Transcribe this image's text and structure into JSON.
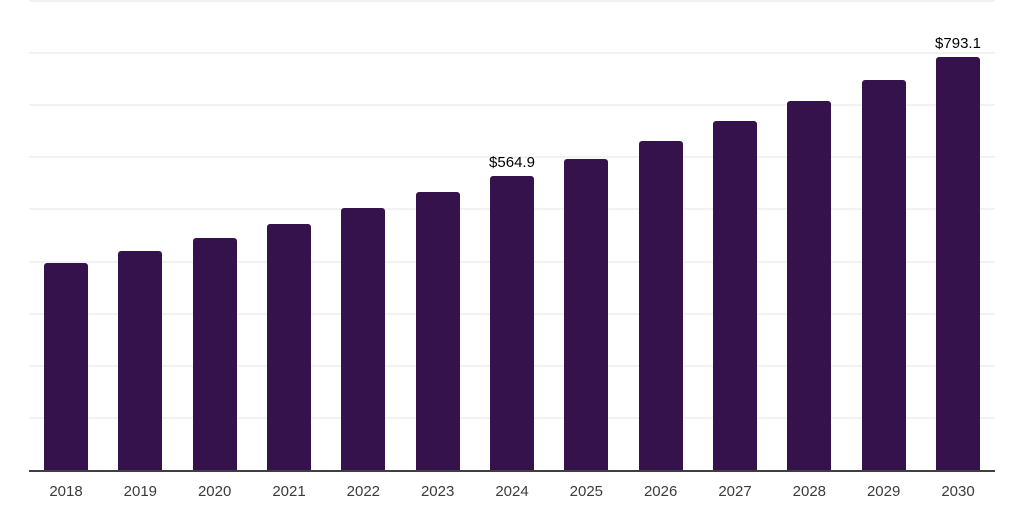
{
  "chart_data": {
    "type": "bar",
    "title": "",
    "xlabel": "",
    "ylabel": "",
    "categories": [
      "2018",
      "2019",
      "2020",
      "2021",
      "2022",
      "2023",
      "2024",
      "2025",
      "2026",
      "2027",
      "2028",
      "2029",
      "2030"
    ],
    "values": [
      398,
      421,
      446,
      473,
      503,
      534,
      564.9,
      597,
      632,
      670,
      708,
      748,
      793.1
    ],
    "data_labels": [
      "",
      "",
      "",
      "",
      "",
      "",
      "$564.9",
      "",
      "",
      "",
      "",
      "",
      "$793.1"
    ],
    "ylim": [
      0,
      900
    ],
    "gridline_step": 100,
    "grid": true,
    "legend": "none",
    "colors": {
      "bar": "#36124D",
      "axis_line": "#3f3f3f",
      "gridline": "#f2f2f2",
      "tick_label": "#3b3b3b",
      "data_label": "#000000"
    }
  }
}
